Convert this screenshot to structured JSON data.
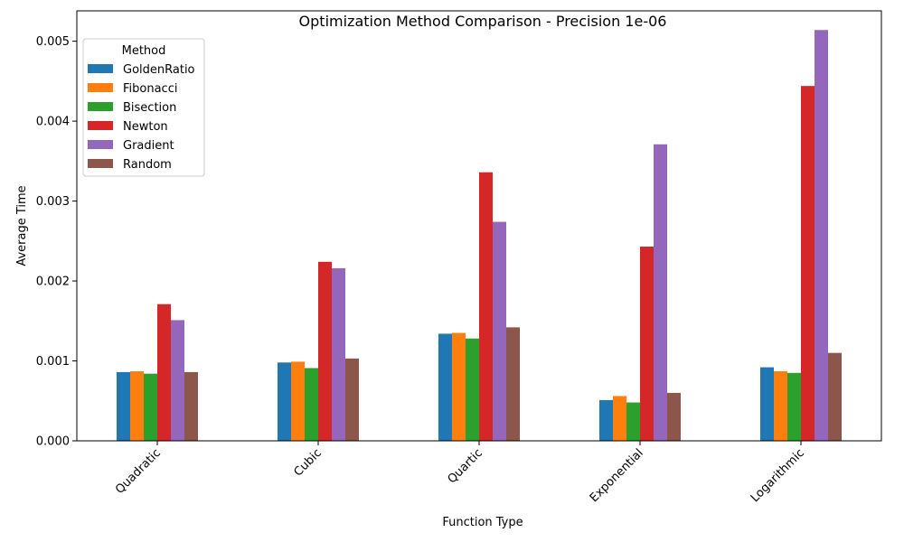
{
  "chart_data": {
    "type": "bar",
    "title": "Optimization Method Comparison - Precision 1e-06",
    "xlabel": "Function Type",
    "ylabel": "Average Time",
    "categories": [
      "Quadratic",
      "Cubic",
      "Quartic",
      "Exponential",
      "Logarithmic"
    ],
    "ylim": [
      0,
      0.00538
    ],
    "yticks": [
      0,
      0.001,
      0.002,
      0.003,
      0.004,
      0.005
    ],
    "ytick_labels": [
      "0.000",
      "0.001",
      "0.002",
      "0.003",
      "0.004",
      "0.005"
    ],
    "legend_title": "Method",
    "legend_position": "top-left",
    "grid": false,
    "series": [
      {
        "name": "GoldenRatio",
        "color": "#1f77b4",
        "values": [
          0.00086,
          0.00098,
          0.00134,
          0.00051,
          0.00092
        ]
      },
      {
        "name": "Fibonacci",
        "color": "#ff7f0e",
        "values": [
          0.00087,
          0.00099,
          0.00135,
          0.00056,
          0.00087
        ]
      },
      {
        "name": "Bisection",
        "color": "#2ca02c",
        "values": [
          0.00084,
          0.00091,
          0.00128,
          0.00048,
          0.00085
        ]
      },
      {
        "name": "Newton",
        "color": "#d62728",
        "values": [
          0.00171,
          0.00224,
          0.00336,
          0.00243,
          0.00444
        ]
      },
      {
        "name": "Gradient",
        "color": "#9467bd",
        "values": [
          0.00151,
          0.00216,
          0.00274,
          0.00371,
          0.00514
        ]
      },
      {
        "name": "Random",
        "color": "#8c564b",
        "values": [
          0.00086,
          0.00103,
          0.00142,
          0.0006,
          0.0011
        ]
      }
    ]
  }
}
